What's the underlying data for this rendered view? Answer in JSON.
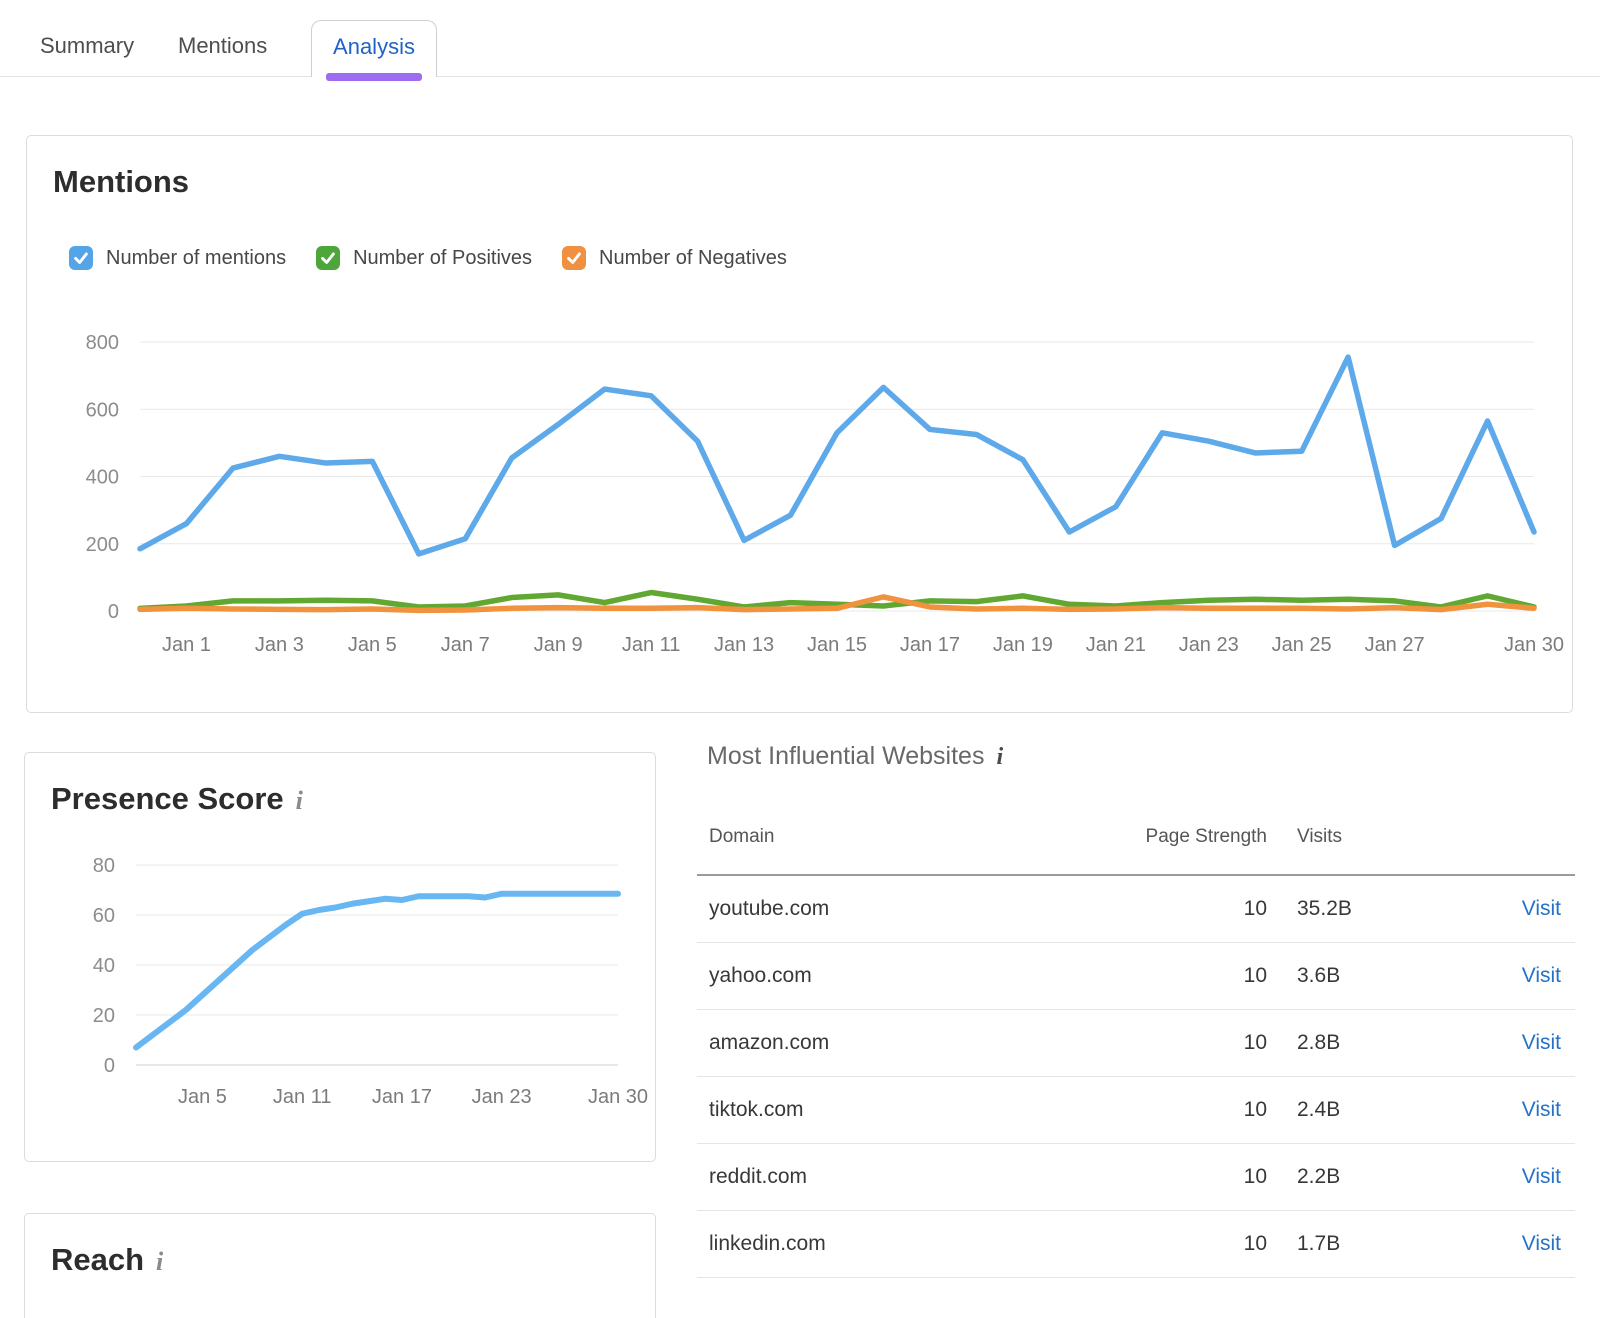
{
  "tabs": {
    "items": [
      {
        "label": "Summary",
        "active": false
      },
      {
        "label": "Mentions",
        "active": false
      },
      {
        "label": "Analysis",
        "active": true
      }
    ],
    "active_color": "#2063c5",
    "underline_color": "#9e6cf2"
  },
  "mentions_card": {
    "title": "Mentions",
    "legend": [
      {
        "label": "Number of mentions",
        "color": "#54a4e8",
        "checked": true
      },
      {
        "label": "Number of Positives",
        "color": "#4ca63a",
        "checked": true
      },
      {
        "label": "Number of Negatives",
        "color": "#ef9140",
        "checked": true
      }
    ]
  },
  "presence_card": {
    "title": "Presence Score",
    "info_icon": "i"
  },
  "reach_card": {
    "title": "Reach",
    "info_icon": "i"
  },
  "websites": {
    "title": "Most Influential Websites",
    "info_icon": "i",
    "columns": [
      "Domain",
      "Page Strength",
      "Visits"
    ],
    "link_label": "Visit",
    "rows": [
      {
        "domain": "youtube.com",
        "page_strength": "10",
        "visits": "35.2B"
      },
      {
        "domain": "yahoo.com",
        "page_strength": "10",
        "visits": "3.6B"
      },
      {
        "domain": "amazon.com",
        "page_strength": "10",
        "visits": "2.8B"
      },
      {
        "domain": "tiktok.com",
        "page_strength": "10",
        "visits": "2.4B"
      },
      {
        "domain": "reddit.com",
        "page_strength": "10",
        "visits": "2.2B"
      },
      {
        "domain": "linkedin.com",
        "page_strength": "10",
        "visits": "1.7B"
      }
    ]
  },
  "chart_data": [
    {
      "id": "mentions-chart",
      "type": "line",
      "title": "Mentions",
      "grid": true,
      "legend_position": "top",
      "ylim": [
        0,
        800
      ],
      "yticks": [
        0,
        200,
        400,
        600,
        800
      ],
      "categories": [
        "Dec 31",
        "Jan 1",
        "Jan 2",
        "Jan 3",
        "Jan 4",
        "Jan 5",
        "Jan 6",
        "Jan 7",
        "Jan 8",
        "Jan 9",
        "Jan 10",
        "Jan 11",
        "Jan 12",
        "Jan 13",
        "Jan 14",
        "Jan 15",
        "Jan 16",
        "Jan 17",
        "Jan 18",
        "Jan 19",
        "Jan 20",
        "Jan 21",
        "Jan 22",
        "Jan 23",
        "Jan 24",
        "Jan 25",
        "Jan 26",
        "Jan 27",
        "Jan 28",
        "Jan 29",
        "Jan 30"
      ],
      "x_tick_labels": [
        {
          "label": "Jan 1",
          "index": 1
        },
        {
          "label": "Jan 3",
          "index": 3
        },
        {
          "label": "Jan 5",
          "index": 5
        },
        {
          "label": "Jan 7",
          "index": 7
        },
        {
          "label": "Jan 9",
          "index": 9
        },
        {
          "label": "Jan 11",
          "index": 11
        },
        {
          "label": "Jan 13",
          "index": 13
        },
        {
          "label": "Jan 15",
          "index": 15
        },
        {
          "label": "Jan 17",
          "index": 17
        },
        {
          "label": "Jan 19",
          "index": 19
        },
        {
          "label": "Jan 21",
          "index": 21
        },
        {
          "label": "Jan 23",
          "index": 23
        },
        {
          "label": "Jan 25",
          "index": 25
        },
        {
          "label": "Jan 27",
          "index": 27
        },
        {
          "label": "Jan 30",
          "index": 30
        }
      ],
      "series": [
        {
          "name": "Number of mentions",
          "color": "#5ea9e9",
          "values": [
            185,
            260,
            425,
            460,
            440,
            445,
            170,
            215,
            455,
            555,
            660,
            640,
            505,
            210,
            285,
            530,
            665,
            540,
            525,
            450,
            235,
            310,
            530,
            505,
            470,
            475,
            755,
            195,
            275,
            565,
            235
          ]
        },
        {
          "name": "Number of Positives",
          "color": "#61a832",
          "values": [
            8,
            15,
            30,
            30,
            32,
            30,
            12,
            15,
            40,
            48,
            25,
            55,
            35,
            12,
            25,
            20,
            15,
            30,
            28,
            45,
            20,
            15,
            25,
            32,
            35,
            32,
            35,
            30,
            12,
            45,
            12
          ]
        },
        {
          "name": "Number of Negatives",
          "color": "#f0923e",
          "values": [
            5,
            8,
            6,
            5,
            4,
            6,
            2,
            3,
            8,
            10,
            8,
            8,
            10,
            4,
            6,
            8,
            42,
            12,
            6,
            8,
            5,
            6,
            10,
            8,
            8,
            8,
            6,
            10,
            4,
            20,
            8
          ]
        }
      ]
    },
    {
      "id": "presence-chart",
      "type": "line",
      "title": "Presence Score",
      "grid": true,
      "ylim": [
        0,
        80
      ],
      "yticks": [
        0,
        20,
        40,
        60,
        80
      ],
      "categories": [
        "Jan 1",
        "Jan 2",
        "Jan 3",
        "Jan 4",
        "Jan 5",
        "Jan 6",
        "Jan 7",
        "Jan 8",
        "Jan 9",
        "Jan 10",
        "Jan 11",
        "Jan 12",
        "Jan 13",
        "Jan 14",
        "Jan 15",
        "Jan 16",
        "Jan 17",
        "Jan 18",
        "Jan 19",
        "Jan 20",
        "Jan 21",
        "Jan 22",
        "Jan 23",
        "Jan 24",
        "Jan 25",
        "Jan 26",
        "Jan 27",
        "Jan 28",
        "Jan 29",
        "Jan 30"
      ],
      "x_tick_labels": [
        {
          "label": "Jan 5",
          "index": 4
        },
        {
          "label": "Jan 11",
          "index": 10
        },
        {
          "label": "Jan 17",
          "index": 16
        },
        {
          "label": "Jan 23",
          "index": 22
        },
        {
          "label": "Jan 30",
          "index": 29
        }
      ],
      "series": [
        {
          "name": "Presence Score",
          "color": "#68b6f2",
          "values": [
            7,
            12,
            17,
            22,
            28,
            34,
            40,
            46,
            51,
            56,
            60.5,
            62,
            63,
            64.5,
            65.5,
            66.5,
            66,
            67.5,
            67.5,
            67.5,
            67.5,
            67,
            68.5,
            68.5,
            68.5,
            68.5,
            68.5,
            68.5,
            68.5,
            68.5
          ]
        }
      ]
    }
  ]
}
